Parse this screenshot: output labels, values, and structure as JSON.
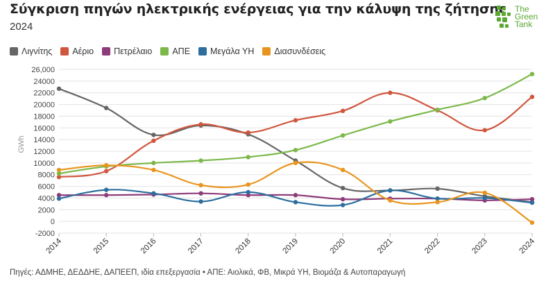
{
  "header": {
    "title": "Σύγκριση πηγών ηλεκτρικής ενέργειας για την κάλυψη της ζήτησης",
    "subtitle": "2024"
  },
  "logo": {
    "line1": "The",
    "line2": "Green",
    "line3": "Tank",
    "color": "#5aa832"
  },
  "footer": {
    "source": "Πηγές: ΑΔΜΗΕ, ΔΕΔΔΗΕ, ΔΑΠΕΕΠ, ιδία επεξεργασία • ΑΠΕ: Αιολικά, ΦΒ, Μικρά ΥΗ, Βιομάζα & Αυτοπαραγωγή"
  },
  "chart_data": {
    "type": "line",
    "x": [
      "2014",
      "2015",
      "2016",
      "2017",
      "2018",
      "2019",
      "2020",
      "2021",
      "2022",
      "2023",
      "2024"
    ],
    "ylabel": "GWh",
    "xlabel": "",
    "ylim": [
      -2000,
      26000
    ],
    "yticks": [
      -2000,
      0,
      2000,
      4000,
      6000,
      8000,
      10000,
      12000,
      14000,
      16000,
      18000,
      20000,
      22000,
      24000,
      26000
    ],
    "ytick_labels": [
      "-2000",
      "0",
      "2000",
      "4000",
      "6000",
      "8000",
      "10000",
      "12000",
      "14000",
      "16000",
      "18000",
      "20000",
      "22000",
      "24000",
      "26,000"
    ],
    "grid": true,
    "legend_position": "top-left",
    "series": [
      {
        "name": "Λιγνίτης",
        "color": "#666666",
        "values": [
          22700,
          19400,
          14800,
          16400,
          14900,
          10400,
          5700,
          5300,
          5600,
          4300,
          3300
        ]
      },
      {
        "name": "Αέριο",
        "color": "#d0563e",
        "values": [
          7600,
          8600,
          13800,
          16600,
          15200,
          17300,
          18900,
          22000,
          19000,
          15600,
          21300
        ]
      },
      {
        "name": "Πετρέλαιο",
        "color": "#8e3b7a",
        "values": [
          4500,
          4500,
          4600,
          4800,
          4500,
          4500,
          3800,
          3900,
          3900,
          3600,
          3800
        ]
      },
      {
        "name": "ΑΠΕ",
        "color": "#7cb84a",
        "values": [
          8200,
          9400,
          10000,
          10400,
          11000,
          12200,
          14700,
          17100,
          19100,
          21100,
          25200
        ]
      },
      {
        "name": "Μεγάλα ΥΗ",
        "color": "#2d6e9e",
        "values": [
          3900,
          5400,
          4800,
          3400,
          5000,
          3300,
          2800,
          5300,
          3900,
          4000,
          3200
        ]
      },
      {
        "name": "Διασυνδέσεις",
        "color": "#e8951f",
        "values": [
          8800,
          9600,
          8800,
          6200,
          6300,
          10000,
          8800,
          3600,
          3300,
          4900,
          -200
        ]
      }
    ]
  }
}
